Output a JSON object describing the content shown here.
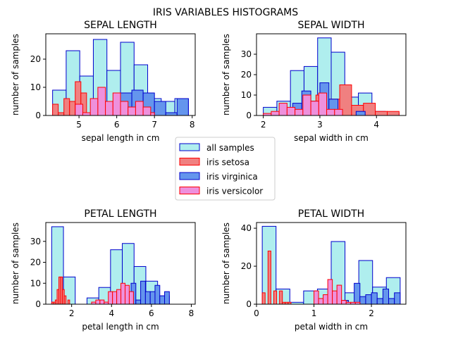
{
  "suptitle": "IRIS VARIABLES HISTOGRAMS",
  "colors": {
    "all": "#afeeee",
    "all_edge": "#0000cd",
    "setosa": "#f08080",
    "setosa_edge": "#ff0000",
    "virginica": "#6495ed",
    "virginica_edge": "#0000cd",
    "versicolor": "#ee90dc",
    "versicolor_edge": "#ff0000"
  },
  "legend": {
    "placement": "center",
    "entries": [
      {
        "key": "all",
        "label": "all samples"
      },
      {
        "key": "setosa",
        "label": "iris setosa"
      },
      {
        "key": "virginica",
        "label": "iris virginica"
      },
      {
        "key": "versicolor",
        "label": "iris versicolor"
      }
    ]
  },
  "chart_data": [
    {
      "type": "bar",
      "title": "SEPAL LENGTH",
      "xlabel": "sepal length in cm",
      "ylabel": "number of samples",
      "xlim": [
        4.12,
        8.08
      ],
      "ylim": [
        0,
        29
      ],
      "xticks": [
        5,
        6,
        7,
        8
      ],
      "yticks": [
        0,
        10,
        20
      ],
      "series": [
        {
          "key": "all",
          "bins": [
            [
              4.3,
              4.66,
              9
            ],
            [
              4.66,
              5.02,
              23
            ],
            [
              5.02,
              5.38,
              14
            ],
            [
              5.38,
              5.74,
              27
            ],
            [
              5.74,
              6.1,
              16
            ],
            [
              6.1,
              6.46,
              26
            ],
            [
              6.46,
              6.82,
              18
            ],
            [
              6.82,
              7.18,
              6
            ],
            [
              7.18,
              7.54,
              5
            ],
            [
              7.54,
              7.9,
              6
            ]
          ]
        },
        {
          "key": "setosa",
          "bins": [
            [
              4.3,
              4.45,
              4
            ],
            [
              4.45,
              4.6,
              1
            ],
            [
              4.6,
              4.75,
              6
            ],
            [
              4.75,
              4.9,
              5
            ],
            [
              4.9,
              5.05,
              12
            ],
            [
              5.05,
              5.2,
              8
            ],
            [
              5.2,
              5.35,
              1
            ],
            [
              5.35,
              5.5,
              4
            ],
            [
              5.5,
              5.65,
              2
            ],
            [
              5.65,
              5.8,
              2
            ]
          ]
        },
        {
          "key": "virginica",
          "bins": [
            [
              4.9,
              5.2,
              1
            ],
            [
              5.2,
              5.5,
              0
            ],
            [
              5.5,
              5.8,
              5
            ],
            [
              5.8,
              6.1,
              4
            ],
            [
              6.1,
              6.4,
              8
            ],
            [
              6.4,
              6.7,
              9
            ],
            [
              6.7,
              7.0,
              8
            ],
            [
              7.0,
              7.3,
              5
            ],
            [
              7.3,
              7.6,
              1
            ],
            [
              7.6,
              7.9,
              6
            ]
          ]
        },
        {
          "key": "versicolor",
          "bins": [
            [
              4.9,
              5.1,
              4
            ],
            [
              5.1,
              5.3,
              1
            ],
            [
              5.3,
              5.5,
              6
            ],
            [
              5.5,
              5.7,
              10
            ],
            [
              5.7,
              5.9,
              5
            ],
            [
              5.9,
              6.1,
              8
            ],
            [
              6.1,
              6.3,
              5
            ],
            [
              6.3,
              6.5,
              3
            ],
            [
              6.5,
              6.7,
              5
            ],
            [
              6.7,
              6.9,
              3
            ],
            [
              6.9,
              7.0,
              1
            ]
          ]
        }
      ]
    },
    {
      "type": "bar",
      "title": "SEPAL WIDTH",
      "xlabel": "sepal width in cm",
      "ylabel": "number of samples",
      "xlim": [
        1.88,
        4.52
      ],
      "ylim": [
        0,
        40
      ],
      "xticks": [
        2,
        3,
        4
      ],
      "yticks": [
        0,
        10,
        20,
        30
      ],
      "series": [
        {
          "key": "all",
          "bins": [
            [
              2.0,
              2.24,
              4
            ],
            [
              2.24,
              2.48,
              7
            ],
            [
              2.48,
              2.72,
              22
            ],
            [
              2.72,
              2.96,
              24
            ],
            [
              2.96,
              3.2,
              38
            ],
            [
              3.2,
              3.44,
              31
            ],
            [
              3.44,
              3.68,
              9
            ],
            [
              3.68,
              3.92,
              11
            ],
            [
              3.92,
              4.16,
              2
            ],
            [
              4.16,
              4.4,
              1
            ]
          ]
        },
        {
          "key": "setosa",
          "bins": [
            [
              2.3,
              2.51,
              1
            ],
            [
              2.51,
              2.72,
              0
            ],
            [
              2.72,
              2.93,
              0
            ],
            [
              2.93,
              3.14,
              10
            ],
            [
              3.14,
              3.35,
              8
            ],
            [
              3.35,
              3.56,
              15
            ],
            [
              3.56,
              3.77,
              5
            ],
            [
              3.77,
              3.98,
              6
            ],
            [
              3.98,
              4.19,
              2
            ],
            [
              4.19,
              4.4,
              2
            ]
          ]
        },
        {
          "key": "virginica",
          "bins": [
            [
              2.2,
              2.36,
              1
            ],
            [
              2.36,
              2.52,
              0
            ],
            [
              2.52,
              2.68,
              6
            ],
            [
              2.68,
              2.84,
              12
            ],
            [
              2.84,
              3.0,
              7
            ],
            [
              3.0,
              3.16,
              16
            ],
            [
              3.16,
              3.32,
              8
            ],
            [
              3.32,
              3.48,
              0
            ],
            [
              3.48,
              3.64,
              0
            ],
            [
              3.64,
              3.8,
              2
            ]
          ]
        },
        {
          "key": "versicolor",
          "bins": [
            [
              2.0,
              2.14,
              1
            ],
            [
              2.14,
              2.28,
              2
            ],
            [
              2.28,
              2.42,
              6
            ],
            [
              2.42,
              2.56,
              4
            ],
            [
              2.56,
              2.7,
              3
            ],
            [
              2.7,
              2.84,
              10
            ],
            [
              2.84,
              2.98,
              7
            ],
            [
              2.98,
              3.12,
              11
            ],
            [
              3.12,
              3.26,
              3
            ],
            [
              3.26,
              3.4,
              3
            ]
          ]
        }
      ]
    },
    {
      "type": "bar",
      "title": "PETAL LENGTH",
      "xlabel": "petal length in cm",
      "ylabel": "number of samples",
      "xlim": [
        0.705,
        8.195
      ],
      "ylim": [
        0,
        39
      ],
      "xticks": [
        2,
        4,
        6,
        8
      ],
      "yticks": [
        0,
        10,
        20,
        30
      ],
      "series": [
        {
          "key": "all",
          "bins": [
            [
              1.0,
              1.59,
              37
            ],
            [
              1.59,
              2.18,
              13
            ],
            [
              2.18,
              2.77,
              0
            ],
            [
              2.77,
              3.36,
              3
            ],
            [
              3.36,
              3.95,
              8
            ],
            [
              3.95,
              4.54,
              26
            ],
            [
              4.54,
              5.13,
              29
            ],
            [
              5.13,
              5.72,
              18
            ],
            [
              5.72,
              6.31,
              11
            ],
            [
              6.31,
              6.9,
              4
            ]
          ]
        },
        {
          "key": "setosa",
          "bins": [
            [
              1.0,
              1.09,
              1
            ],
            [
              1.09,
              1.18,
              1
            ],
            [
              1.18,
              1.27,
              2
            ],
            [
              1.27,
              1.36,
              7
            ],
            [
              1.36,
              1.45,
              13
            ],
            [
              1.45,
              1.54,
              13
            ],
            [
              1.54,
              1.63,
              7
            ],
            [
              1.63,
              1.72,
              4
            ],
            [
              1.72,
              1.81,
              0
            ],
            [
              1.81,
              1.9,
              2
            ]
          ]
        },
        {
          "key": "virginica",
          "bins": [
            [
              4.5,
              4.74,
              1
            ],
            [
              4.74,
              4.98,
              4
            ],
            [
              4.98,
              5.22,
              10
            ],
            [
              5.22,
              5.46,
              2
            ],
            [
              5.46,
              5.7,
              11
            ],
            [
              5.7,
              5.94,
              6
            ],
            [
              5.94,
              6.18,
              6
            ],
            [
              6.18,
              6.42,
              9
            ],
            [
              6.42,
              6.66,
              4
            ],
            [
              6.66,
              6.9,
              6
            ]
          ]
        },
        {
          "key": "versicolor",
          "bins": [
            [
              3.0,
              3.21,
              1
            ],
            [
              3.21,
              3.42,
              2
            ],
            [
              3.42,
              3.63,
              2
            ],
            [
              3.63,
              3.84,
              1
            ],
            [
              3.84,
              4.05,
              6
            ],
            [
              4.05,
              4.26,
              6
            ],
            [
              4.26,
              4.47,
              7
            ],
            [
              4.47,
              4.68,
              10
            ],
            [
              4.68,
              4.89,
              9
            ],
            [
              4.89,
              5.1,
              6
            ]
          ]
        }
      ]
    },
    {
      "type": "bar",
      "title": "PETAL WIDTH",
      "xlabel": "petal width in cm",
      "ylabel": "number of samples",
      "xlim": [
        0,
        2.6
      ],
      "ylim": [
        0,
        43
      ],
      "xticks": [
        0,
        1,
        2
      ],
      "yticks": [
        0,
        20,
        40
      ],
      "series": [
        {
          "key": "all",
          "bins": [
            [
              0.1,
              0.34,
              41
            ],
            [
              0.34,
              0.58,
              8
            ],
            [
              0.58,
              0.82,
              1
            ],
            [
              0.82,
              1.06,
              7
            ],
            [
              1.06,
              1.3,
              8
            ],
            [
              1.3,
              1.54,
              33
            ],
            [
              1.54,
              1.78,
              6
            ],
            [
              1.78,
              2.02,
              23
            ],
            [
              2.02,
              2.26,
              9
            ],
            [
              2.26,
              2.5,
              14
            ]
          ]
        },
        {
          "key": "setosa",
          "bins": [
            [
              0.1,
              0.15,
              6
            ],
            [
              0.15,
              0.2,
              0
            ],
            [
              0.2,
              0.25,
              28
            ],
            [
              0.25,
              0.3,
              0
            ],
            [
              0.3,
              0.35,
              7
            ],
            [
              0.35,
              0.4,
              0
            ],
            [
              0.4,
              0.45,
              7
            ],
            [
              0.45,
              0.5,
              1
            ],
            [
              0.5,
              0.55,
              1
            ],
            [
              0.55,
              0.6,
              1
            ]
          ]
        },
        {
          "key": "virginica",
          "bins": [
            [
              1.4,
              1.5,
              1
            ],
            [
              1.5,
              1.6,
              2
            ],
            [
              1.6,
              1.7,
              0
            ],
            [
              1.7,
              1.8,
              11
            ],
            [
              1.8,
              1.9,
              4
            ],
            [
              1.9,
              2.0,
              5
            ],
            [
              2.0,
              2.1,
              6
            ],
            [
              2.1,
              2.2,
              3
            ],
            [
              2.2,
              2.3,
              8
            ],
            [
              2.3,
              2.4,
              3
            ],
            [
              2.4,
              2.5,
              6
            ]
          ]
        },
        {
          "key": "versicolor",
          "bins": [
            [
              1.0,
              1.08,
              7
            ],
            [
              1.08,
              1.16,
              3
            ],
            [
              1.16,
              1.24,
              5
            ],
            [
              1.24,
              1.32,
              13
            ],
            [
              1.32,
              1.4,
              7
            ],
            [
              1.4,
              1.48,
              10
            ],
            [
              1.48,
              1.56,
              2
            ],
            [
              1.56,
              1.64,
              1
            ],
            [
              1.64,
              1.72,
              1
            ],
            [
              1.72,
              1.8,
              1
            ]
          ]
        }
      ]
    }
  ]
}
